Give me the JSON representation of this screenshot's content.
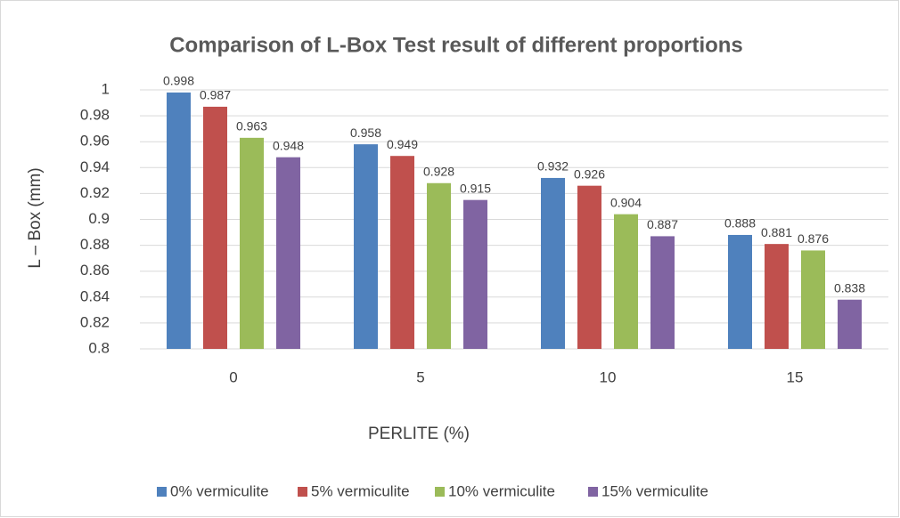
{
  "chart_data": {
    "type": "bar",
    "title": "Comparison of L-Box Test result of different proportions",
    "x_label": "PERLITE (%)",
    "y_label": "L – Box (mm)",
    "categories": [
      "0",
      "5",
      "10",
      "15"
    ],
    "series": [
      {
        "name": "0% vermiculite",
        "color": "#4f81bd",
        "values": [
          0.998,
          0.958,
          0.932,
          0.888
        ]
      },
      {
        "name": "5% vermiculite",
        "color": "#c0504d",
        "values": [
          0.987,
          0.949,
          0.926,
          0.881
        ]
      },
      {
        "name": "10% vermiculite",
        "color": "#9bbb59",
        "values": [
          0.963,
          0.928,
          0.904,
          0.876
        ]
      },
      {
        "name": "15% vermiculite",
        "color": "#8064a2",
        "values": [
          0.948,
          0.915,
          0.887,
          0.838
        ]
      }
    ],
    "ylim": [
      0.8,
      1
    ],
    "yticks": [
      0.8,
      0.82,
      0.84,
      0.86,
      0.88,
      0.9,
      0.92,
      0.94,
      0.96,
      0.98,
      1
    ],
    "grid": true,
    "legend": "bottom"
  }
}
